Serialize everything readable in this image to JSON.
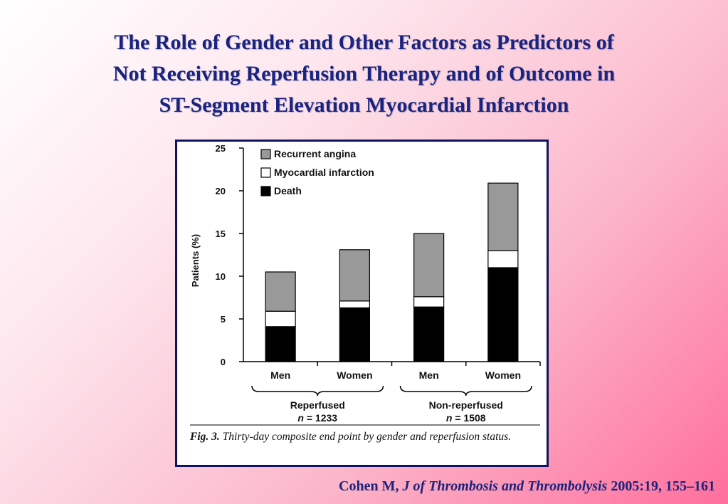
{
  "title": {
    "line1": "The Role of Gender and Other Factors as Predictors of",
    "line2": "Not Receiving Reperfusion Therapy and of Outcome in",
    "line3": "ST-Segment Elevation Myocardial Infarction"
  },
  "chart_data": {
    "type": "bar",
    "stacked": true,
    "categories": [
      "Men",
      "Women",
      "Men",
      "Women"
    ],
    "groups": [
      {
        "label": "Reperfused",
        "n_label": "n",
        "n_value": "= 1233"
      },
      {
        "label": "Non-reperfused",
        "n_label": "n",
        "n_value": "= 1508"
      }
    ],
    "series": [
      {
        "name": "Death",
        "values": [
          4.1,
          6.3,
          6.4,
          11.0
        ],
        "color": "#000000"
      },
      {
        "name": "Myocardial infarction",
        "values": [
          1.8,
          0.8,
          1.2,
          2.0
        ],
        "color": "#ffffff"
      },
      {
        "name": "Recurrent angina",
        "values": [
          4.6,
          6.0,
          7.4,
          7.9
        ],
        "color": "#999999"
      }
    ],
    "legend_order": [
      "Recurrent angina",
      "Myocardial infarction",
      "Death"
    ],
    "ylabel": "Patients (%)",
    "xlabel": "",
    "ylim": [
      0,
      25
    ],
    "yticks": [
      0,
      5,
      10,
      15,
      20,
      25
    ],
    "legend_position": "top-left",
    "grid": false
  },
  "caption": {
    "fig_label": "Fig. 3.",
    "text": "Thirty-day composite end point by gender and reperfusion status."
  },
  "citation": {
    "author": "Cohen M,",
    "journal": "J of Thrombosis and Thrombolysis",
    "details": "2005:19, 155–161"
  }
}
